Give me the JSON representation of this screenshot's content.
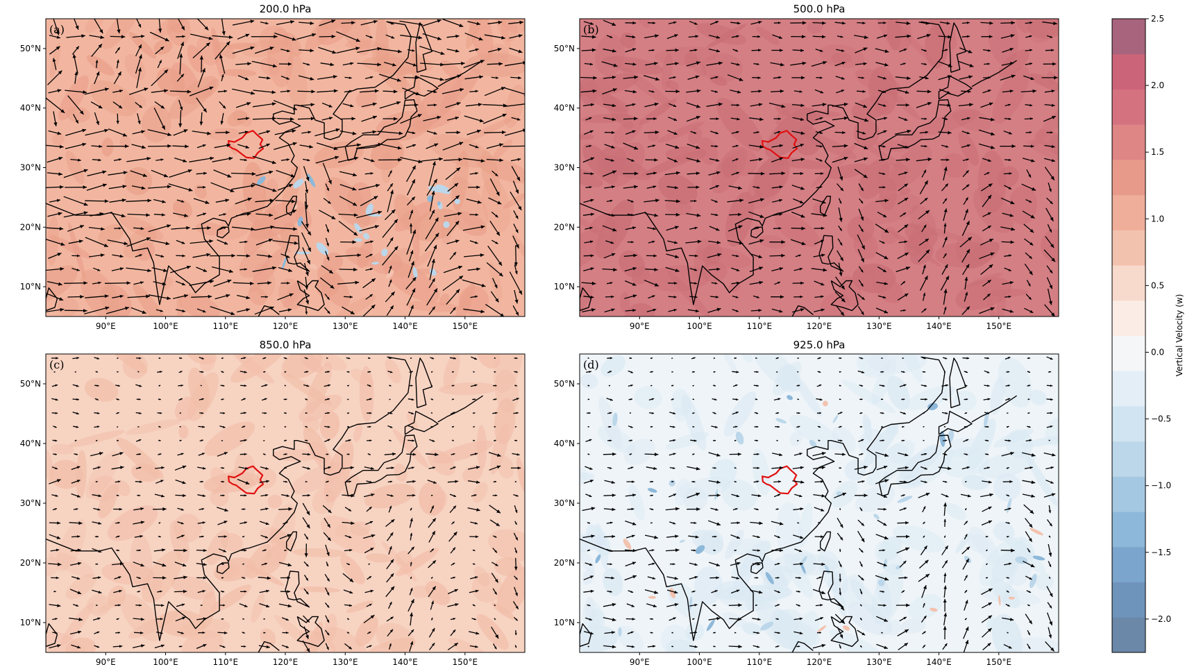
{
  "panels": [
    {
      "id": "a",
      "label": "(a)",
      "title": "200.0 hPa",
      "fill": "#f2b6a0",
      "fill2": "#e9a08a",
      "blue_patches": true,
      "strong_wind": true
    },
    {
      "id": "b",
      "label": "(b)",
      "title": "500.0 hPa",
      "fill": "#d47f84",
      "fill2": "#c96f76",
      "blue_patches": false,
      "strong_wind": false
    },
    {
      "id": "c",
      "label": "(c)",
      "title": "850.0 hPa",
      "fill": "#f7d3c2",
      "fill2": "#f1bda8",
      "blue_patches": false,
      "strong_wind": false
    },
    {
      "id": "d",
      "label": "(d)",
      "title": "925.0 hPa",
      "fill": "#eef4f8",
      "fill2": "#dbe9f3",
      "blue_patches": true,
      "strong_wind": false
    }
  ],
  "axes": {
    "x_ticks": [
      "90°E",
      "100°E",
      "110°E",
      "120°E",
      "130°E",
      "140°E",
      "150°E"
    ],
    "x_values": [
      90,
      100,
      110,
      120,
      130,
      140,
      150
    ],
    "x_range": [
      80,
      160
    ],
    "y_ticks": [
      "10°N",
      "20°N",
      "30°N",
      "40°N",
      "50°N"
    ],
    "y_values": [
      10,
      20,
      30,
      40,
      50
    ],
    "y_range": [
      5,
      55
    ]
  },
  "colorbar": {
    "label": "Vertical Velocity (w)",
    "tick_labels": [
      "2.5",
      "2.0",
      "1.5",
      "1.0",
      "0.5",
      "0.0",
      "−0.5",
      "−1.0",
      "−1.5",
      "−2.0"
    ],
    "tick_values": [
      2.5,
      2.0,
      1.5,
      1.0,
      0.5,
      0.0,
      -0.5,
      -1.0,
      -1.5,
      -2.0
    ],
    "range": [
      -2.25,
      2.5
    ],
    "colors": [
      "#6b88a8",
      "#6f94bb",
      "#7ba5cc",
      "#8db8d9",
      "#a5c8e2",
      "#bcd7ea",
      "#d1e4f1",
      "#e3eef6",
      "#f4f6f8",
      "#fbece6",
      "#f8dacd",
      "#f3c2ae",
      "#eeae99",
      "#e89a8a",
      "#de8585",
      "#d57280",
      "#cc6479",
      "#a8647d"
    ]
  },
  "region_outline_color": "#e01010",
  "arrow_color": "#000000"
}
